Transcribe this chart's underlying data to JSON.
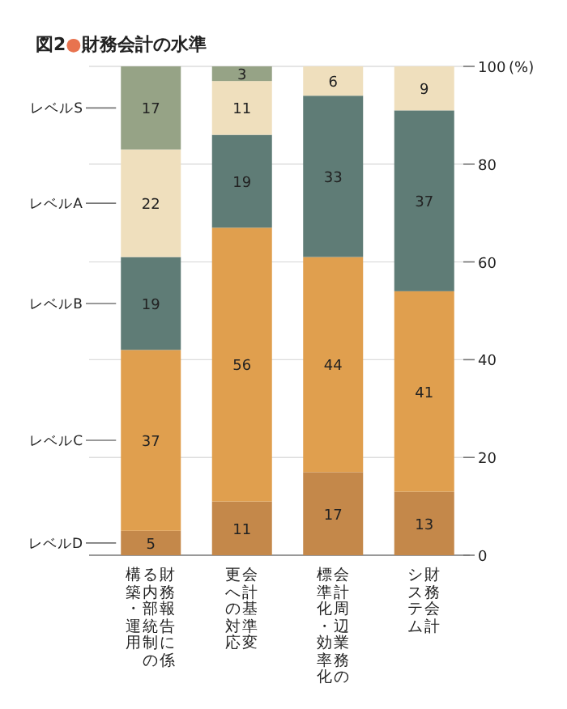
{
  "chart_data": {
    "type": "bar",
    "stacked": true,
    "title": "図2●財務会計の水準",
    "ylabel": "(%)",
    "categories": [
      "財務報告に係る内部統制の構築・運用",
      "会計基準変更への対応",
      "会計周辺業務の標準化・効率化",
      "財務会計システム"
    ],
    "series": [
      {
        "name": "レベルD",
        "color": "#c4884a",
        "values": [
          5,
          11,
          17,
          13
        ]
      },
      {
        "name": "レベルC",
        "color": "#e09f4e",
        "values": [
          37,
          56,
          44,
          41
        ]
      },
      {
        "name": "レベルB",
        "color": "#5f7c76",
        "values": [
          19,
          19,
          33,
          37
        ]
      },
      {
        "name": "レベルA",
        "color": "#efdfbd",
        "values": [
          22,
          11,
          6,
          9
        ]
      },
      {
        "name": "レベルS",
        "color": "#96a386",
        "values": [
          17,
          3,
          null,
          null
        ]
      }
    ],
    "ylim": [
      0,
      100
    ],
    "yticks": [
      0,
      20,
      40,
      60,
      80,
      100
    ],
    "grid": "y",
    "data_labels": true,
    "legend": false
  }
}
